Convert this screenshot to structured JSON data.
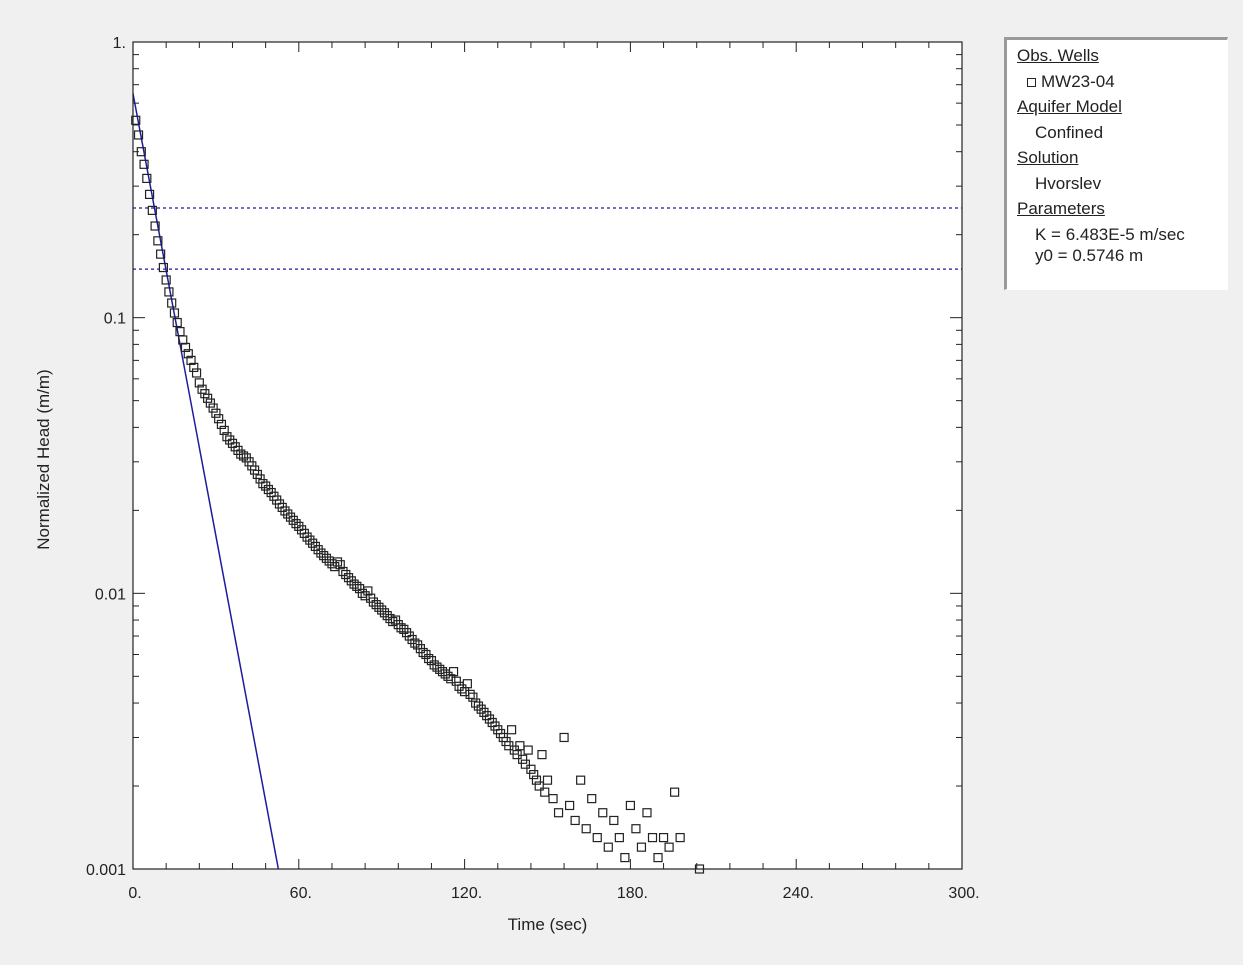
{
  "chart_data": {
    "type": "scatter",
    "xlabel": "Time (sec)",
    "ylabel": "Normalized Head (m/m)",
    "xlim": [
      0,
      300
    ],
    "ylim": [
      0.001,
      1
    ],
    "yscale": "log",
    "x_ticks": [
      0,
      60,
      120,
      180,
      240,
      300
    ],
    "x_tick_labels": [
      "0.",
      "60.",
      "120.",
      "180.",
      "240.",
      "300."
    ],
    "y_ticks": [
      1,
      0.1,
      0.01,
      0.001
    ],
    "y_tick_labels": [
      "1.",
      "0.1",
      "0.01",
      "0.001"
    ],
    "grid": false,
    "legend_position": "right",
    "series": [
      {
        "name": "MW23-04",
        "kind": "markers",
        "marker": "open-square",
        "color": "#222222",
        "points": [
          [
            1,
            0.52
          ],
          [
            2,
            0.46
          ],
          [
            3,
            0.4
          ],
          [
            4,
            0.36
          ],
          [
            5,
            0.32
          ],
          [
            6,
            0.28
          ],
          [
            7,
            0.245
          ],
          [
            8,
            0.215
          ],
          [
            9,
            0.19
          ],
          [
            10,
            0.17
          ],
          [
            11,
            0.152
          ],
          [
            12,
            0.137
          ],
          [
            13,
            0.124
          ],
          [
            14,
            0.113
          ],
          [
            15,
            0.104
          ],
          [
            16,
            0.096
          ],
          [
            17,
            0.089
          ],
          [
            18,
            0.083
          ],
          [
            19,
            0.078
          ],
          [
            20,
            0.074
          ],
          [
            21,
            0.07
          ],
          [
            22,
            0.066
          ],
          [
            23,
            0.063
          ],
          [
            24,
            0.058
          ],
          [
            25,
            0.055
          ],
          [
            26,
            0.053
          ],
          [
            27,
            0.051
          ],
          [
            28,
            0.049
          ],
          [
            29,
            0.047
          ],
          [
            30,
            0.045
          ],
          [
            31,
            0.043
          ],
          [
            32,
            0.041
          ],
          [
            33,
            0.039
          ],
          [
            34,
            0.037
          ],
          [
            35,
            0.036
          ],
          [
            36,
            0.035
          ],
          [
            37,
            0.034
          ],
          [
            38,
            0.033
          ],
          [
            39,
            0.032
          ],
          [
            40,
            0.0315
          ],
          [
            41,
            0.031
          ],
          [
            42,
            0.03
          ],
          [
            43,
            0.029
          ],
          [
            44,
            0.028
          ],
          [
            45,
            0.027
          ],
          [
            46,
            0.026
          ],
          [
            47,
            0.025
          ],
          [
            48,
            0.0245
          ],
          [
            49,
            0.0238
          ],
          [
            50,
            0.0232
          ],
          [
            51,
            0.0225
          ],
          [
            52,
            0.0218
          ],
          [
            53,
            0.0211
          ],
          [
            54,
            0.0205
          ],
          [
            55,
            0.0199
          ],
          [
            56,
            0.0194
          ],
          [
            57,
            0.0189
          ],
          [
            58,
            0.0184
          ],
          [
            59,
            0.0179
          ],
          [
            60,
            0.0175
          ],
          [
            61,
            0.017
          ],
          [
            62,
            0.0165
          ],
          [
            63,
            0.016
          ],
          [
            64,
            0.0156
          ],
          [
            65,
            0.0152
          ],
          [
            66,
            0.0148
          ],
          [
            67,
            0.0144
          ],
          [
            68,
            0.014
          ],
          [
            69,
            0.0137
          ],
          [
            70,
            0.0134
          ],
          [
            71,
            0.0131
          ],
          [
            72,
            0.0128
          ],
          [
            73,
            0.0125
          ],
          [
            74,
            0.013
          ],
          [
            75,
            0.0127
          ],
          [
            76,
            0.012
          ],
          [
            77,
            0.0117
          ],
          [
            78,
            0.0114
          ],
          [
            79,
            0.0111
          ],
          [
            80,
            0.0108
          ],
          [
            81,
            0.0106
          ],
          [
            82,
            0.0104
          ],
          [
            83,
            0.01
          ],
          [
            84,
            0.0098
          ],
          [
            85,
            0.0102
          ],
          [
            86,
            0.0096
          ],
          [
            87,
            0.0093
          ],
          [
            88,
            0.0091
          ],
          [
            89,
            0.0089
          ],
          [
            90,
            0.0087
          ],
          [
            91,
            0.0085
          ],
          [
            92,
            0.0083
          ],
          [
            93,
            0.0081
          ],
          [
            94,
            0.0079
          ],
          [
            95,
            0.008
          ],
          [
            96,
            0.0077
          ],
          [
            97,
            0.0075
          ],
          [
            98,
            0.0074
          ],
          [
            99,
            0.0072
          ],
          [
            100,
            0.007
          ],
          [
            101,
            0.0068
          ],
          [
            102,
            0.0066
          ],
          [
            103,
            0.0065
          ],
          [
            104,
            0.0063
          ],
          [
            105,
            0.0061
          ],
          [
            106,
            0.006
          ],
          [
            107,
            0.0058
          ],
          [
            108,
            0.0057
          ],
          [
            109,
            0.0055
          ],
          [
            110,
            0.0054
          ],
          [
            111,
            0.0053
          ],
          [
            112,
            0.0052
          ],
          [
            113,
            0.0051
          ],
          [
            114,
            0.005
          ],
          [
            115,
            0.0049
          ],
          [
            116,
            0.0052
          ],
          [
            117,
            0.0048
          ],
          [
            118,
            0.0046
          ],
          [
            119,
            0.0045
          ],
          [
            120,
            0.0044
          ],
          [
            121,
            0.0047
          ],
          [
            122,
            0.0043
          ],
          [
            123,
            0.0042
          ],
          [
            124,
            0.004
          ],
          [
            125,
            0.0039
          ],
          [
            126,
            0.0038
          ],
          [
            127,
            0.0037
          ],
          [
            128,
            0.0036
          ],
          [
            129,
            0.0035
          ],
          [
            130,
            0.0034
          ],
          [
            131,
            0.0033
          ],
          [
            132,
            0.0032
          ],
          [
            133,
            0.0031
          ],
          [
            134,
            0.003
          ],
          [
            135,
            0.0029
          ],
          [
            136,
            0.0028
          ],
          [
            137,
            0.0032
          ],
          [
            138,
            0.0027
          ],
          [
            139,
            0.0026
          ],
          [
            140,
            0.0028
          ],
          [
            141,
            0.0025
          ],
          [
            142,
            0.0024
          ],
          [
            143,
            0.0027
          ],
          [
            144,
            0.0023
          ],
          [
            145,
            0.0022
          ],
          [
            146,
            0.0021
          ],
          [
            147,
            0.002
          ],
          [
            148,
            0.0026
          ],
          [
            149,
            0.0019
          ],
          [
            150,
            0.0021
          ],
          [
            152,
            0.0018
          ],
          [
            154,
            0.0016
          ],
          [
            156,
            0.003
          ],
          [
            158,
            0.0017
          ],
          [
            160,
            0.0015
          ],
          [
            162,
            0.0021
          ],
          [
            164,
            0.0014
          ],
          [
            166,
            0.0018
          ],
          [
            168,
            0.0013
          ],
          [
            170,
            0.0016
          ],
          [
            172,
            0.0012
          ],
          [
            174,
            0.0015
          ],
          [
            176,
            0.0013
          ],
          [
            178,
            0.0011
          ],
          [
            180,
            0.0017
          ],
          [
            182,
            0.0014
          ],
          [
            184,
            0.0012
          ],
          [
            186,
            0.0016
          ],
          [
            188,
            0.0013
          ],
          [
            190,
            0.0011
          ],
          [
            192,
            0.0013
          ],
          [
            194,
            0.0012
          ],
          [
            196,
            0.0019
          ],
          [
            198,
            0.0013
          ],
          [
            205,
            0.001
          ]
        ]
      },
      {
        "name": "Hvorslev fit",
        "kind": "line",
        "color": "#1c1ca0",
        "points": [
          [
            0,
            0.65
          ],
          [
            52.6,
            0.001
          ]
        ]
      }
    ],
    "reference_lines": [
      {
        "y": 0.25,
        "color": "#1c1ca0",
        "style": "dashed"
      },
      {
        "y": 0.15,
        "color": "#1c1ca0",
        "style": "dashed"
      }
    ]
  },
  "legend": {
    "obs_wells_heading": "Obs. Wells",
    "well_name": "MW23-04",
    "aquifer_model_heading": "Aquifer Model",
    "aquifer_model_value": "Confined",
    "solution_heading": "Solution",
    "solution_value": "Hvorslev",
    "parameters_heading": "Parameters",
    "param_k": "K  = 6.483E-5 m/sec",
    "param_y0": "y0 = 0.5746 m"
  }
}
